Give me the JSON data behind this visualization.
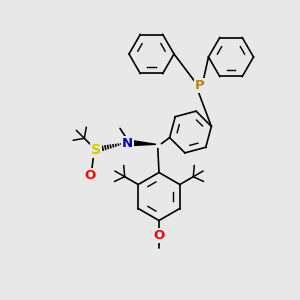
{
  "bg_color": "#e8e8e8",
  "bond_color": "#000000",
  "bond_width": 1.2,
  "P_color": "#b8860b",
  "N_color": "#0000cd",
  "S_color": "#cccc00",
  "O_color": "#ff0000",
  "figsize": [
    3.0,
    3.0
  ],
  "dpi": 100,
  "xlim": [
    0,
    10
  ],
  "ylim": [
    0,
    10
  ]
}
